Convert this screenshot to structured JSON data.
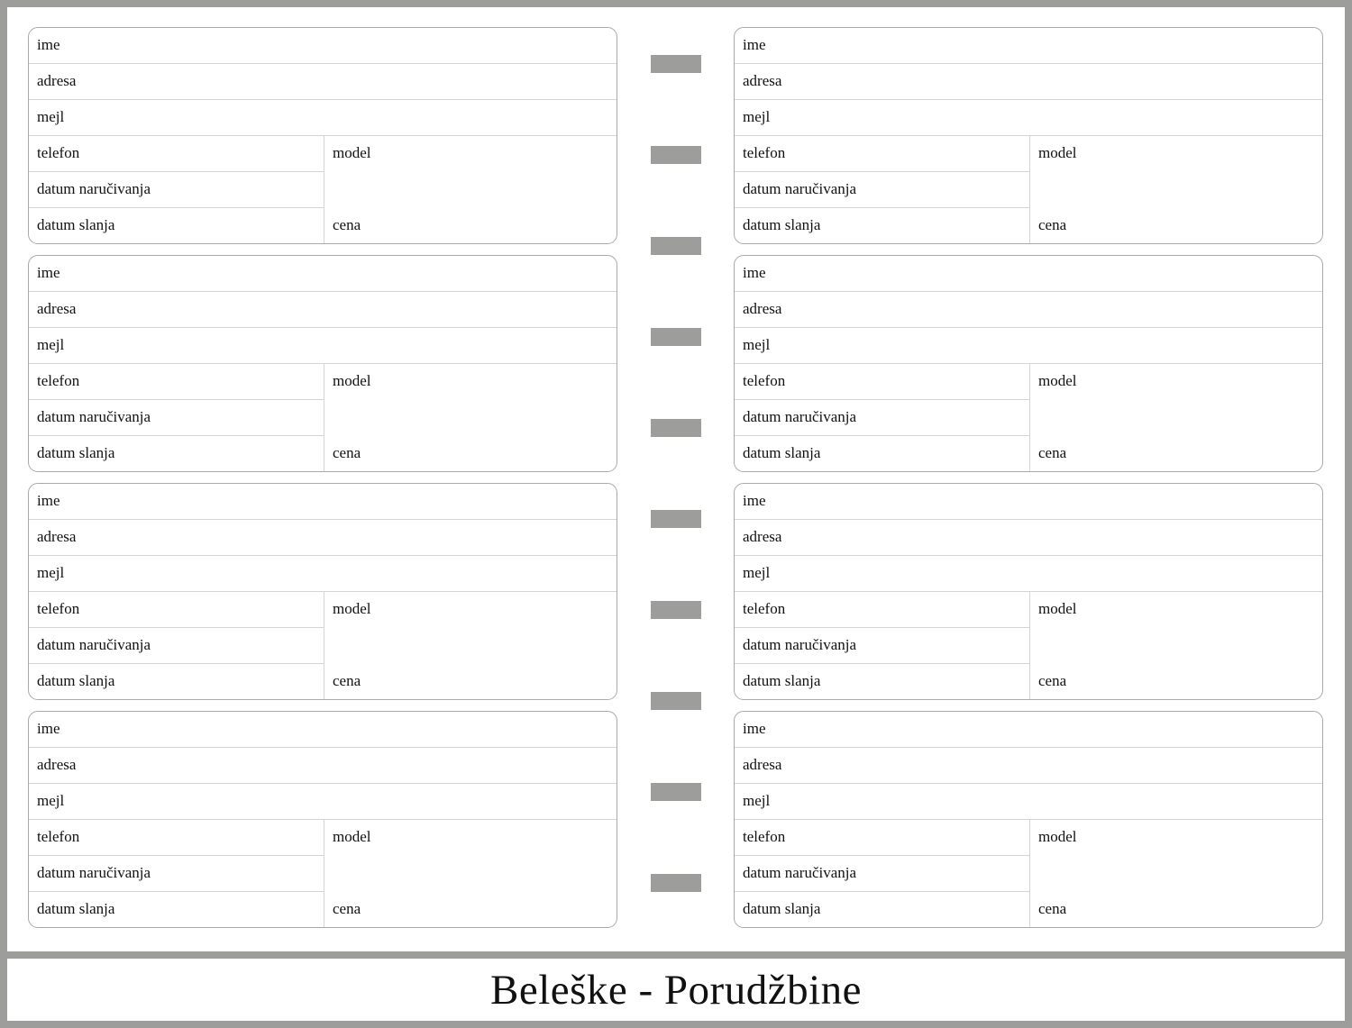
{
  "form_fields": {
    "name": "ime",
    "address": "adresa",
    "email": "mejl",
    "phone": "telefon",
    "model": "model",
    "order_date": "datum naručivanja",
    "ship_date": "datum slanja",
    "price": "cena"
  },
  "card_count": 8,
  "binder_tab_count": 10,
  "footer": {
    "title": "Beleške - Porudžbine"
  },
  "colors": {
    "border": "#9d9d9b",
    "card_outline": "#a9a9a9",
    "rule": "#d4d4d4"
  }
}
